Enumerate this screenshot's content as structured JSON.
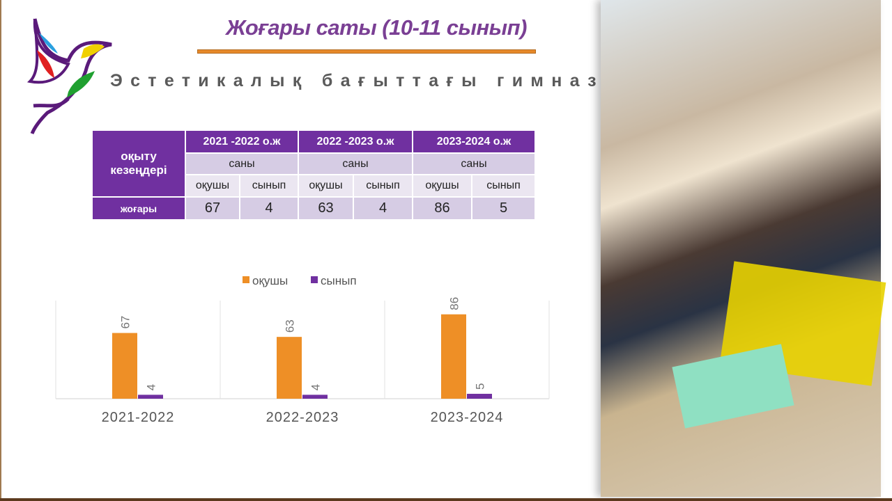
{
  "header": {
    "title": "Жоғары саты (10-11 сынып)",
    "subtitle": "Эстетикалық бағыттағы гимназия"
  },
  "colors": {
    "accent_purple": "#7030a0",
    "accent_orange": "#ee8f26",
    "title_color": "#7a3f94"
  },
  "table": {
    "row_header": "оқыту кезеңдері",
    "years": [
      "2021 -2022 о.ж",
      "2022 -2023 о.ж",
      "2023-2024 о.ж"
    ],
    "sub": "саны",
    "cols": [
      "оқушы",
      "сынып"
    ],
    "row_label": "жоғары",
    "values": [
      [
        "67",
        "4"
      ],
      [
        "63",
        "4"
      ],
      [
        "86",
        "5"
      ]
    ]
  },
  "chart_data": {
    "type": "bar",
    "categories": [
      "2021-2022",
      "2022-2023",
      "2023-2024"
    ],
    "series": [
      {
        "name": "оқушы",
        "values": [
          67,
          63,
          86
        ],
        "color": "#ee8f26"
      },
      {
        "name": "сынып",
        "values": [
          4,
          4,
          5
        ],
        "color": "#7030a0"
      }
    ],
    "ylim": [
      0,
      100
    ],
    "legend": "top",
    "grid": false,
    "data_labels": true
  },
  "photo": {
    "icon": "classroom-photo"
  }
}
